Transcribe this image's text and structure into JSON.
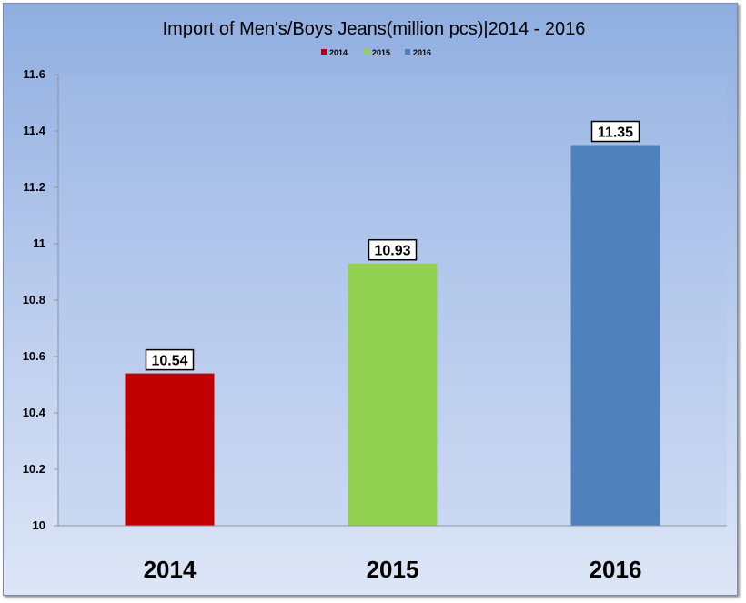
{
  "chart_data": {
    "type": "bar",
    "title": "Import of Men's/Boys Jeans(million pcs)|2014 - 2016",
    "categories": [
      "2014",
      "2015",
      "2016"
    ],
    "values": [
      10.54,
      10.93,
      11.35
    ],
    "series": [
      {
        "name": "2014",
        "color": "#c00000"
      },
      {
        "name": "2015",
        "color": "#92d050"
      },
      {
        "name": "2016",
        "color": "#4f81bd"
      }
    ],
    "data_labels": [
      "10.54",
      "10.93",
      "11.35"
    ],
    "ylim": [
      10,
      11.6
    ],
    "yticks": [
      "10",
      "10.2",
      "10.4",
      "10.6",
      "10.8",
      "11",
      "11.2",
      "11.4",
      "11.6"
    ],
    "legend_position": "top-center",
    "grid": false
  }
}
